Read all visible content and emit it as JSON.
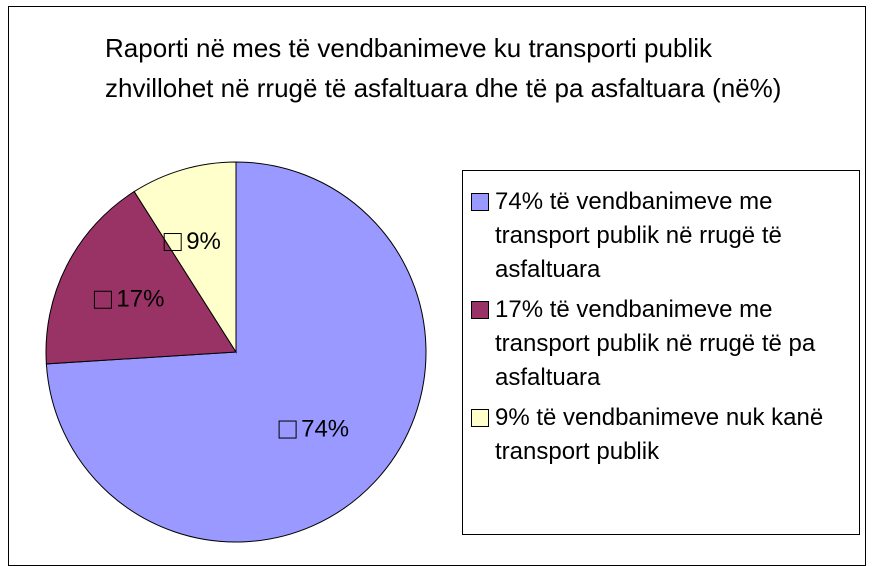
{
  "chart_data": {
    "type": "pie",
    "title": "Raporti në mes të vendbanimeve ku transporti publik zhvillohet në rrugë të asfaltuara dhe të pa asfaltuara (në%)",
    "categories": [
      "74% të vendbanimeve me transport publik në rrugë të asfaltuara",
      "17% të vendbanimeve me transport publik në rrugë të pa asfaltuara",
      "9% të vendbanimeve nuk kanë transport publik"
    ],
    "values": [
      74,
      17,
      9
    ],
    "value_labels": [
      "74%",
      "17%",
      "9%"
    ],
    "colors": [
      "#9999ff",
      "#993366",
      "#ffffcc"
    ],
    "legend": "right"
  }
}
